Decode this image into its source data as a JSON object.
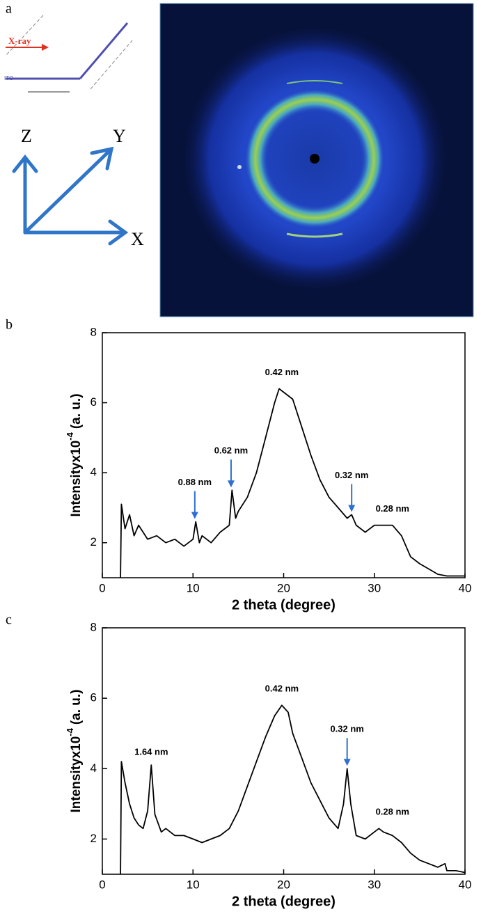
{
  "panel_a": {
    "label": "a",
    "beam": "X-ray",
    "substrate": "ITO",
    "axes": [
      "Z",
      "Y",
      "X"
    ]
  },
  "chart_data": [
    {
      "type": "line",
      "panel": "b",
      "x_label": "2 theta (degree)",
      "y_label": "Intensityx10",
      "y_label_sup": "-4",
      "y_label_unit": "(a. u.)",
      "xlim": [
        0,
        40
      ],
      "ylim": [
        1,
        8
      ],
      "xticks": [
        0,
        10,
        20,
        30,
        40
      ],
      "yticks": [
        2,
        4,
        6,
        8
      ],
      "series": [
        {
          "color": "#000000",
          "x": [
            2,
            2.1,
            2.5,
            3,
            3.5,
            4,
            5,
            6,
            7,
            8,
            9,
            10,
            10.3,
            10.7,
            11,
            12,
            13,
            14,
            14.3,
            14.7,
            15,
            16,
            17,
            18,
            19,
            19.5,
            20,
            21,
            22,
            23,
            24,
            25,
            26,
            27,
            27.5,
            28,
            29,
            30,
            31,
            32,
            33,
            34,
            35,
            36,
            37,
            38,
            39,
            40
          ],
          "values": [
            1.0,
            3.1,
            2.4,
            2.8,
            2.2,
            2.5,
            2.1,
            2.2,
            2.0,
            2.1,
            1.9,
            2.1,
            2.6,
            2.0,
            2.2,
            2.0,
            2.3,
            2.5,
            3.5,
            2.7,
            2.9,
            3.3,
            4.0,
            5.0,
            6.0,
            6.4,
            6.3,
            6.1,
            5.3,
            4.5,
            3.8,
            3.3,
            3.0,
            2.7,
            2.8,
            2.5,
            2.3,
            2.5,
            2.5,
            2.5,
            2.2,
            1.6,
            1.4,
            1.25,
            1.1,
            1.05,
            1.05,
            1.05
          ]
        }
      ],
      "annotations": [
        {
          "text": "0.88 nm",
          "x": 10.2,
          "y": 2.6,
          "arrow": true
        },
        {
          "text": "0.62 nm",
          "x": 14.2,
          "y": 3.5,
          "arrow": true
        },
        {
          "text": "0.42 nm",
          "x": 19.8,
          "y": 6.5,
          "arrow": false
        },
        {
          "text": "0.32 nm",
          "x": 27.5,
          "y": 2.8,
          "arrow": true
        },
        {
          "text": "0.28 nm",
          "x": 32,
          "y": 2.6,
          "arrow": false
        }
      ]
    },
    {
      "type": "line",
      "panel": "c",
      "x_label": "2 theta (degree)",
      "y_label": "Intensityx10",
      "y_label_sup": "-4",
      "y_label_unit": "(a. u.)",
      "xlim": [
        0,
        40
      ],
      "ylim": [
        1,
        8
      ],
      "xticks": [
        0,
        10,
        20,
        30,
        40
      ],
      "yticks": [
        2,
        4,
        6,
        8
      ],
      "series": [
        {
          "color": "#000000",
          "x": [
            2,
            2.1,
            2.5,
            3,
            3.5,
            4,
            4.5,
            5,
            5.4,
            5.8,
            6.5,
            7,
            8,
            9,
            10,
            11,
            12,
            13,
            14,
            15,
            16,
            17,
            18,
            19,
            19.8,
            20.5,
            21,
            22,
            23,
            24,
            25,
            26,
            26.6,
            27,
            27.4,
            28,
            29,
            30,
            30.5,
            31,
            32,
            33,
            34,
            35,
            36,
            37,
            37.8,
            38,
            39,
            40
          ],
          "values": [
            1.0,
            4.2,
            3.6,
            3.0,
            2.6,
            2.4,
            2.3,
            2.8,
            4.1,
            2.7,
            2.2,
            2.3,
            2.1,
            2.1,
            2.0,
            1.9,
            2.0,
            2.1,
            2.3,
            2.8,
            3.5,
            4.2,
            4.9,
            5.5,
            5.8,
            5.6,
            5.0,
            4.3,
            3.6,
            3.1,
            2.6,
            2.3,
            3.0,
            4.0,
            3.0,
            2.1,
            2.0,
            2.2,
            2.3,
            2.2,
            2.1,
            1.9,
            1.6,
            1.4,
            1.3,
            1.2,
            1.3,
            1.1,
            1.1,
            1.05
          ]
        }
      ],
      "annotations": [
        {
          "text": "1.64 nm",
          "x": 5.4,
          "y": 4.1,
          "arrow": false
        },
        {
          "text": "0.42 nm",
          "x": 19.8,
          "y": 5.9,
          "arrow": false
        },
        {
          "text": "0.32 nm",
          "x": 27,
          "y": 4.0,
          "arrow": true
        },
        {
          "text": "0.28 nm",
          "x": 32,
          "y": 2.4,
          "arrow": false
        }
      ]
    }
  ]
}
